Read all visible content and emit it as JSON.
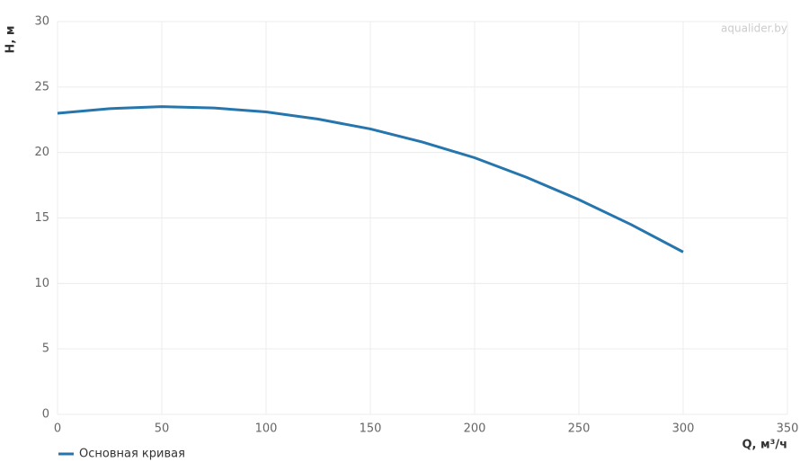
{
  "chart_data": {
    "type": "line",
    "x_label": "Q, м³/ч",
    "y_label": "H, м",
    "watermark": "aqualider.by",
    "x": [
      0,
      25,
      50,
      75,
      100,
      125,
      150,
      175,
      200,
      225,
      250,
      275,
      300
    ],
    "series": [
      {
        "name": "Основная кривая",
        "color": "#2676ad",
        "values": [
          23.0,
          23.35,
          23.5,
          23.4,
          23.1,
          22.55,
          21.8,
          20.8,
          19.6,
          18.1,
          16.4,
          14.5,
          12.4
        ]
      }
    ],
    "xlim": [
      0,
      350
    ],
    "xticks": [
      0,
      50,
      100,
      150,
      200,
      250,
      300,
      350
    ],
    "ylim": [
      0,
      30
    ],
    "yticks": [
      0,
      5,
      10,
      15,
      20,
      25,
      30
    ],
    "grid": true
  }
}
